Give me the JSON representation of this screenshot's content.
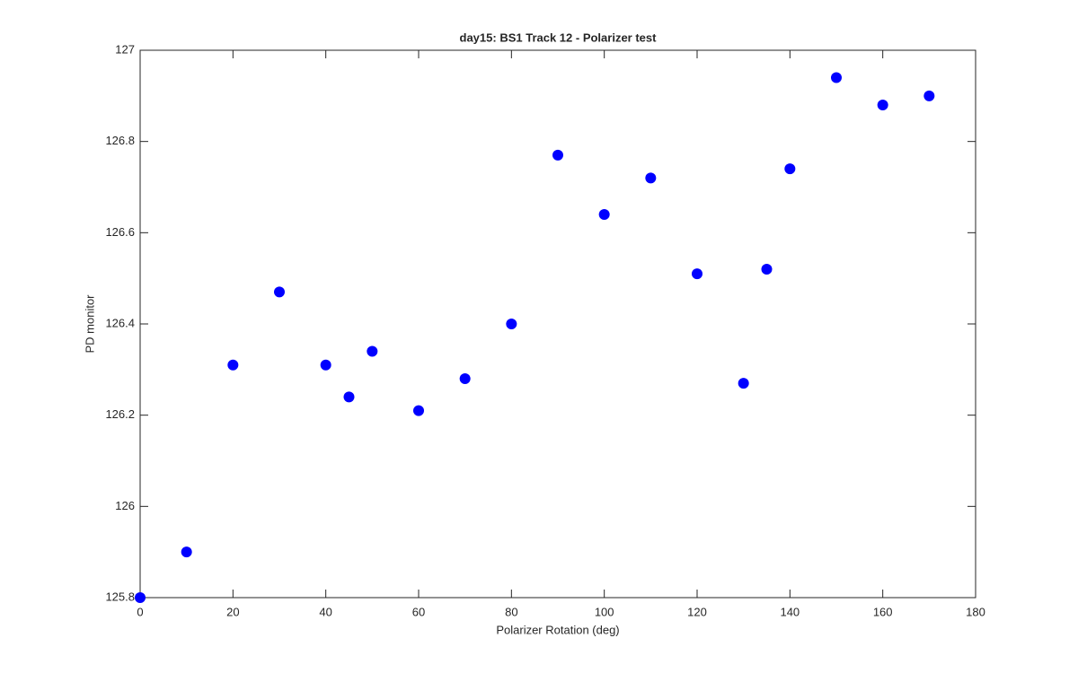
{
  "chart_data": {
    "type": "scatter",
    "title": "day15: BS1  Track 12 - Polarizer test",
    "x_label": "Polarizer Rotation (deg)",
    "y_label": "PD monitor",
    "series": [
      {
        "color": "#0000ff",
        "x": [
          0,
          10,
          20,
          30,
          40,
          45,
          50,
          60,
          70,
          80,
          90,
          100,
          110,
          120,
          130,
          135,
          140,
          150,
          160,
          170
        ],
        "values": [
          125.8,
          125.9,
          126.31,
          126.47,
          126.31,
          126.24,
          126.34,
          126.21,
          126.28,
          126.4,
          126.77,
          126.64,
          126.72,
          126.51,
          126.27,
          126.52,
          126.74,
          126.94,
          126.88,
          126.9
        ]
      }
    ],
    "xlim": [
      0,
      180
    ],
    "xticks": [
      0,
      20,
      40,
      60,
      80,
      100,
      120,
      140,
      160,
      180
    ],
    "ylim": [
      125.8,
      127
    ],
    "yticks": [
      125.8,
      126,
      126.2,
      126.4,
      126.6,
      126.8,
      127
    ],
    "grid": false
  }
}
